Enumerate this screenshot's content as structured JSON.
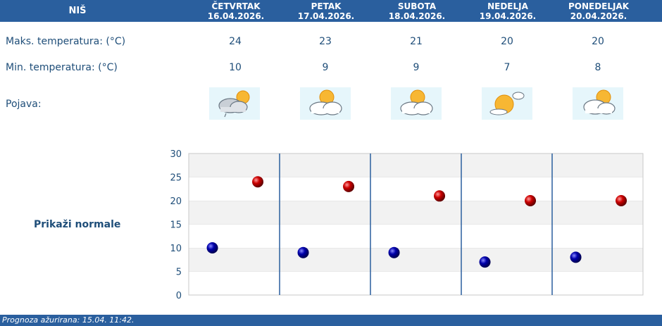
{
  "header": {
    "city": "NIŠ",
    "days": [
      {
        "day": "ČETVRTAK",
        "date": "16.04.2026."
      },
      {
        "day": "PETAK",
        "date": "17.04.2026."
      },
      {
        "day": "SUBOTA",
        "date": "18.04.2026."
      },
      {
        "day": "NEDELJA",
        "date": "19.04.2026."
      },
      {
        "day": "PONEDELJAK",
        "date": "20.04.2026."
      }
    ]
  },
  "rows": {
    "max_label": "Maks. temperatura: (°C)",
    "min_label": "Min. temperatura: (°C)",
    "phenomenon_label": "Pojava:",
    "max_values": [
      "24",
      "23",
      "21",
      "20",
      "20"
    ],
    "min_values": [
      "10",
      "9",
      "9",
      "7",
      "8"
    ],
    "icons": [
      "cloudy-sun-rain-icon",
      "sun-behind-cloud-icon",
      "sun-behind-cloud-icon",
      "sunny-small-cloud-icon",
      "sun-behind-cloud-icon"
    ]
  },
  "normals_link": "Prikaži normale",
  "footer": "Prognoza ažurirana:  15.04. 11:42.",
  "colors": {
    "header": "#2a5f9e",
    "text": "#1f4e79",
    "max_dot": "#cc0000",
    "min_dot": "#0000aa"
  },
  "chart_data": {
    "type": "scatter",
    "categories": [
      "16.04.2026.",
      "17.04.2026.",
      "18.04.2026.",
      "19.04.2026.",
      "20.04.2026."
    ],
    "series": [
      {
        "values": [
          24,
          23,
          21,
          20,
          20
        ]
      },
      {
        "values": [
          10,
          9,
          9,
          7,
          8
        ]
      }
    ],
    "yticks": [
      "0",
      "5",
      "10",
      "15",
      "20",
      "25",
      "30"
    ],
    "ylim": [
      0,
      30
    ],
    "grid": true
  }
}
